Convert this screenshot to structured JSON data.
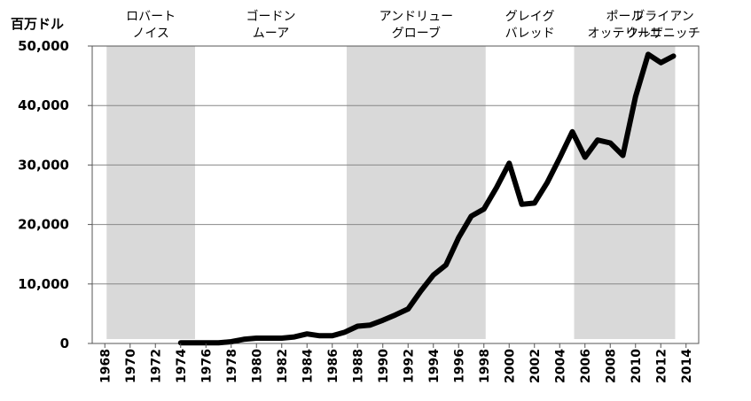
{
  "chart_data": {
    "type": "line",
    "y_unit_label": "百万ドル",
    "ylim": [
      0,
      50000
    ],
    "yticks": [
      "0",
      "10,000",
      "20,000",
      "30,000",
      "40,000",
      "50,000"
    ],
    "ytick_values": [
      0,
      10000,
      20000,
      30000,
      40000,
      50000
    ],
    "xlim": [
      1967,
      2015
    ],
    "xticks": [
      "1968",
      "1970",
      "1972",
      "1974",
      "1976",
      "1978",
      "1980",
      "1982",
      "1984",
      "1986",
      "1988",
      "1990",
      "1992",
      "1994",
      "1996",
      "1998",
      "2000",
      "2002",
      "2004",
      "2006",
      "2008",
      "2010",
      "2012",
      "2014"
    ],
    "grid": true,
    "era_bands": [
      {
        "label_line1": "ロバート",
        "label_line2": "ノイス",
        "start": 1968,
        "end": 1975,
        "shaded": true
      },
      {
        "label_line1": "ゴードン",
        "label_line2": "ムーア",
        "start": 1975,
        "end": 1987,
        "shaded": false
      },
      {
        "label_line1": "アンドリュー",
        "label_line2": "グローブ",
        "start": 1987,
        "end": 1998,
        "shaded": true
      },
      {
        "label_line1": "グレイグ",
        "label_line2": "バレッド",
        "start": 1998,
        "end": 2005,
        "shaded": false
      },
      {
        "label_line1": "ポール",
        "label_line2": "オッテリーニ",
        "start": 2005,
        "end": 2013,
        "shaded": true
      },
      {
        "label_line1": "ブライアン",
        "label_line2": "クルザニッチ",
        "start": 2013,
        "end": 2014,
        "shaded": false
      }
    ],
    "band_color": "#d9d9d9",
    "line_color": "#000000",
    "series": [
      {
        "x": [
          1974,
          1975,
          1976,
          1977,
          1978,
          1979,
          1980,
          1981,
          1982,
          1983,
          1984,
          1985,
          1986,
          1987,
          1988,
          1989,
          1990,
          1991,
          1992,
          1993,
          1994,
          1995,
          1996,
          1997,
          1998,
          1999,
          2000,
          2001,
          2002,
          2003,
          2004,
          2005,
          2006,
          2007,
          2008,
          2009,
          2010,
          2011,
          2012,
          2013
        ],
        "values": [
          100,
          100,
          100,
          100,
          300,
          700,
          900,
          900,
          900,
          1100,
          1600,
          1300,
          1300,
          1900,
          2900,
          3100,
          3900,
          4800,
          5800,
          8800,
          11500,
          13200,
          17800,
          21400,
          22600,
          26200,
          30300,
          23400,
          23600,
          27000,
          31200,
          35600,
          31300,
          34200,
          33700,
          31600,
          41500,
          48600,
          47200,
          48300
        ]
      }
    ]
  }
}
